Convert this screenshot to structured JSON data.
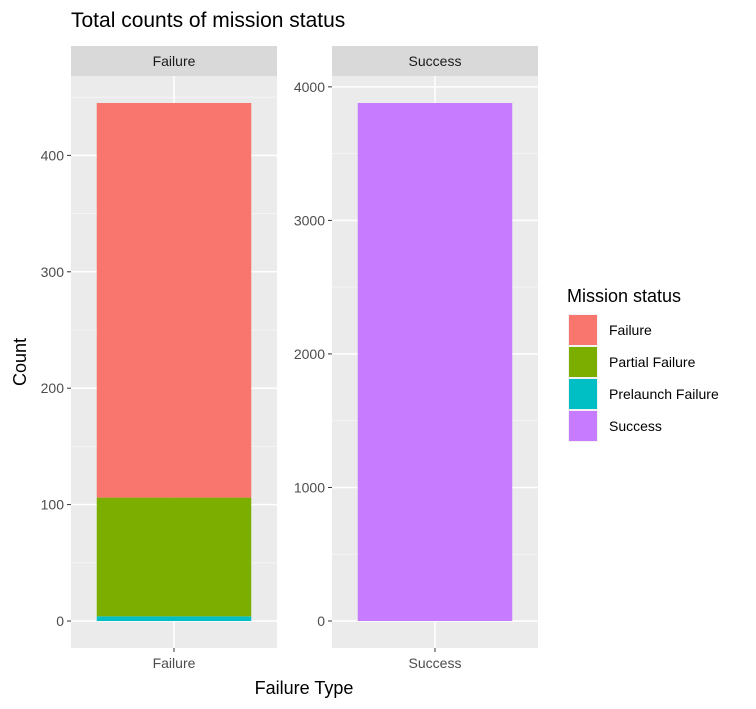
{
  "chart_data": {
    "type": "bar",
    "title": "Total counts of mission status",
    "xlabel": "Failure Type",
    "ylabel": "Count",
    "stacked": true,
    "facets": [
      {
        "strip": "Failure",
        "categories": [
          "Failure"
        ],
        "ylim": [
          0,
          445
        ],
        "yticks": [
          0,
          100,
          200,
          300,
          400
        ],
        "series": [
          {
            "name": "Prelaunch Failure",
            "values": [
              4
            ]
          },
          {
            "name": "Partial Failure",
            "values": [
              102
            ]
          },
          {
            "name": "Failure",
            "values": [
              339
            ]
          }
        ]
      },
      {
        "strip": "Success",
        "categories": [
          "Success"
        ],
        "ylim": [
          0,
          3879
        ],
        "yticks": [
          0,
          1000,
          2000,
          3000,
          4000
        ],
        "series": [
          {
            "name": "Success",
            "values": [
              3879
            ]
          }
        ]
      }
    ],
    "legend": {
      "title": "Mission status",
      "placement": "right",
      "entries": [
        {
          "label": "Failure",
          "color": "#F8766D"
        },
        {
          "label": "Partial Failure",
          "color": "#7CAE00"
        },
        {
          "label": "Prelaunch Failure",
          "color": "#00BFC4"
        },
        {
          "label": "Success",
          "color": "#C77CFF"
        }
      ]
    },
    "grid": true
  }
}
